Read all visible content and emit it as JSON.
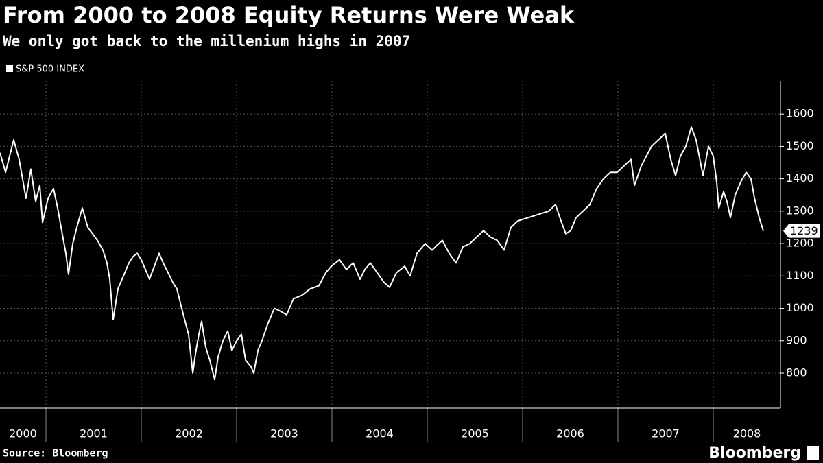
{
  "chart_data": {
    "type": "line",
    "title": "From 2000 to 2008 Equity Returns Were Weak",
    "subtitle": "We only got back to the millenium highs in 2007",
    "source": "Source: Bloomberg",
    "brand": "Bloomberg",
    "x": [
      2000.518,
      2000.576,
      2000.619,
      2000.662,
      2000.719,
      2000.791,
      2000.842,
      2000.892,
      2000.935,
      2000.964,
      2001.022,
      2001.079,
      2001.122,
      2001.165,
      2001.209,
      2001.237,
      2001.281,
      2001.324,
      2001.381,
      2001.439,
      2001.489,
      2001.54,
      2001.597,
      2001.64,
      2001.669,
      2001.705,
      2001.755,
      2001.813,
      2001.87,
      2001.914,
      2001.957,
      2002.0,
      2002.043,
      2002.086,
      2002.137,
      2002.187,
      2002.23,
      2002.281,
      2002.331,
      2002.374,
      2002.424,
      2002.468,
      2002.496,
      2002.54,
      2002.568,
      2002.604,
      2002.633,
      2002.676,
      2002.719,
      2002.77,
      2002.806,
      2002.856,
      2002.907,
      2002.95,
      2003.0,
      2003.05,
      2003.094,
      2003.151,
      2003.18,
      2003.223,
      2003.266,
      2003.324,
      2003.396,
      2003.468,
      2003.525,
      2003.597,
      2003.684,
      2003.77,
      2003.863,
      2003.935,
      2003.993,
      2004.079,
      2004.151,
      2004.223,
      2004.295,
      2004.345,
      2004.403,
      2004.475,
      2004.547,
      2004.604,
      2004.676,
      2004.763,
      2004.82,
      2004.892,
      2004.978,
      2005.05,
      2005.158,
      2005.23,
      2005.302,
      2005.374,
      2005.446,
      2005.518,
      2005.59,
      2005.662,
      2005.734,
      2005.806,
      2005.878,
      2005.95,
      2006.058,
      2006.165,
      2006.273,
      2006.345,
      2006.403,
      2006.453,
      2006.504,
      2006.561,
      2006.633,
      2006.705,
      2006.777,
      2006.849,
      2006.921,
      2006.993,
      2007.065,
      2007.137,
      2007.173,
      2007.245,
      2007.352,
      2007.424,
      2007.496,
      2007.554,
      2007.604,
      2007.655,
      2007.712,
      2007.77,
      2007.82,
      2007.892,
      2007.95,
      2008.0,
      2008.036,
      2008.058,
      2008.108,
      2008.144,
      2008.18,
      2008.23,
      2008.288,
      2008.345,
      2008.396,
      2008.432,
      2008.482,
      2008.525
    ],
    "series": [
      {
        "name": "S&P 500 INDEX",
        "color": "#ffffff",
        "values": [
          1480,
          1420,
          1470,
          1520,
          1460,
          1340,
          1430,
          1330,
          1380,
          1265,
          1340,
          1370,
          1310,
          1240,
          1170,
          1105,
          1200,
          1250,
          1310,
          1250,
          1230,
          1210,
          1180,
          1140,
          1090,
          965,
          1060,
          1100,
          1140,
          1160,
          1170,
          1150,
          1120,
          1090,
          1130,
          1170,
          1140,
          1110,
          1080,
          1060,
          1000,
          950,
          920,
          800,
          860,
          920,
          960,
          880,
          840,
          780,
          850,
          900,
          930,
          870,
          900,
          920,
          840,
          820,
          800,
          870,
          900,
          950,
          1000,
          990,
          980,
          1030,
          1040,
          1060,
          1070,
          1110,
          1130,
          1150,
          1120,
          1140,
          1090,
          1120,
          1140,
          1110,
          1080,
          1065,
          1110,
          1130,
          1100,
          1170,
          1200,
          1180,
          1210,
          1170,
          1140,
          1190,
          1200,
          1220,
          1240,
          1220,
          1210,
          1180,
          1250,
          1270,
          1280,
          1290,
          1300,
          1320,
          1270,
          1230,
          1240,
          1280,
          1300,
          1320,
          1370,
          1400,
          1420,
          1420,
          1440,
          1460,
          1380,
          1440,
          1500,
          1520,
          1540,
          1460,
          1410,
          1470,
          1500,
          1560,
          1520,
          1410,
          1500,
          1470,
          1390,
          1310,
          1360,
          1330,
          1280,
          1350,
          1390,
          1420,
          1400,
          1340,
          1280,
          1239
        ]
      }
    ],
    "xlim": [
      2000.518,
      2008.705
    ],
    "xticks": [
      2001,
      2002,
      2003,
      2004,
      2005,
      2006,
      2007,
      2008
    ],
    "year_labels": [
      "2000",
      "2001",
      "2002",
      "2003",
      "2004",
      "2005",
      "2006",
      "2007",
      "2008"
    ],
    "ylim": [
      692,
      1702
    ],
    "yticks": [
      800,
      900,
      1000,
      1100,
      1200,
      1300,
      1400,
      1500,
      1600
    ],
    "grid": true
  }
}
